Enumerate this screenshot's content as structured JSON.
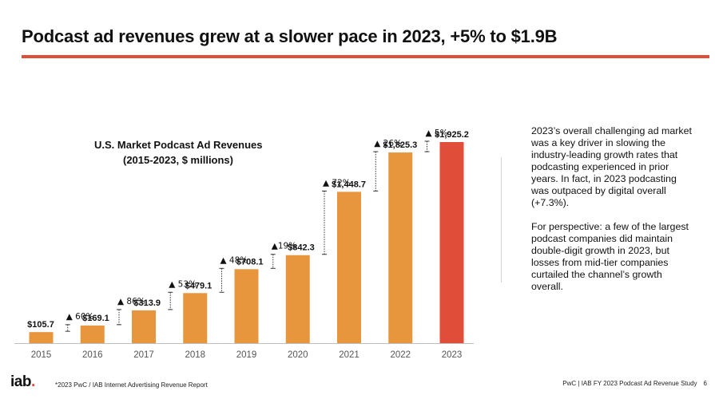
{
  "title": "Podcast ad revenues grew at a slower pace in 2023, +5% to $1.9B",
  "colors": {
    "accent": "#e04e39",
    "bar": "#e8963d",
    "bar_highlight": "#e04e39",
    "axis": "#bfbfbf"
  },
  "chart_title": {
    "line1": "U.S. Market Podcast Ad Revenues",
    "line2": "(2015-2023, $ millions)"
  },
  "chart_data": {
    "type": "bar",
    "title": "U.S. Market Podcast Ad Revenues (2015-2023, $ millions)",
    "xlabel": "",
    "ylabel": "",
    "ylim": [
      0,
      2000
    ],
    "categories": [
      "2015",
      "2016",
      "2017",
      "2018",
      "2019",
      "2020",
      "2021",
      "2022",
      "2023"
    ],
    "values": [
      105.7,
      169.1,
      313.9,
      479.1,
      708.1,
      842.3,
      1448.7,
      1825.3,
      1925.2
    ],
    "value_labels": [
      "$105.7",
      "$169.1",
      "$313.9",
      "$479.1",
      "$708.1",
      "$842.3",
      "$1,448.7",
      "$1,825.3",
      "$1,925.2"
    ],
    "growth_labels": [
      "",
      "▲ 60%",
      "▲ 86%",
      "▲ 53%",
      "▲ 48%",
      "▲19%",
      "▲ 72%",
      "▲ 26%",
      "▲ 5%"
    ],
    "highlight_index": 8,
    "grid": false
  },
  "commentary": {
    "p1": "2023’s overall challenging ad market was a key driver in slowing the industry-leading growth rates that podcasting experienced in prior years. In fact, in 2023 podcasting was outpaced by digital overall (+7.3%).",
    "p2": "For perspective: a few of the largest podcast companies did maintain double-digit growth in 2023, but losses from mid-tier companies curtailed the channel’s growth overall."
  },
  "footer": {
    "logo": "iab",
    "logo_dot": ".",
    "source": "*2023 PwC / IAB Internet Advertising Revenue Report",
    "right": "PwC | IAB FY 2023 Podcast Ad Revenue Study",
    "page": "6"
  }
}
